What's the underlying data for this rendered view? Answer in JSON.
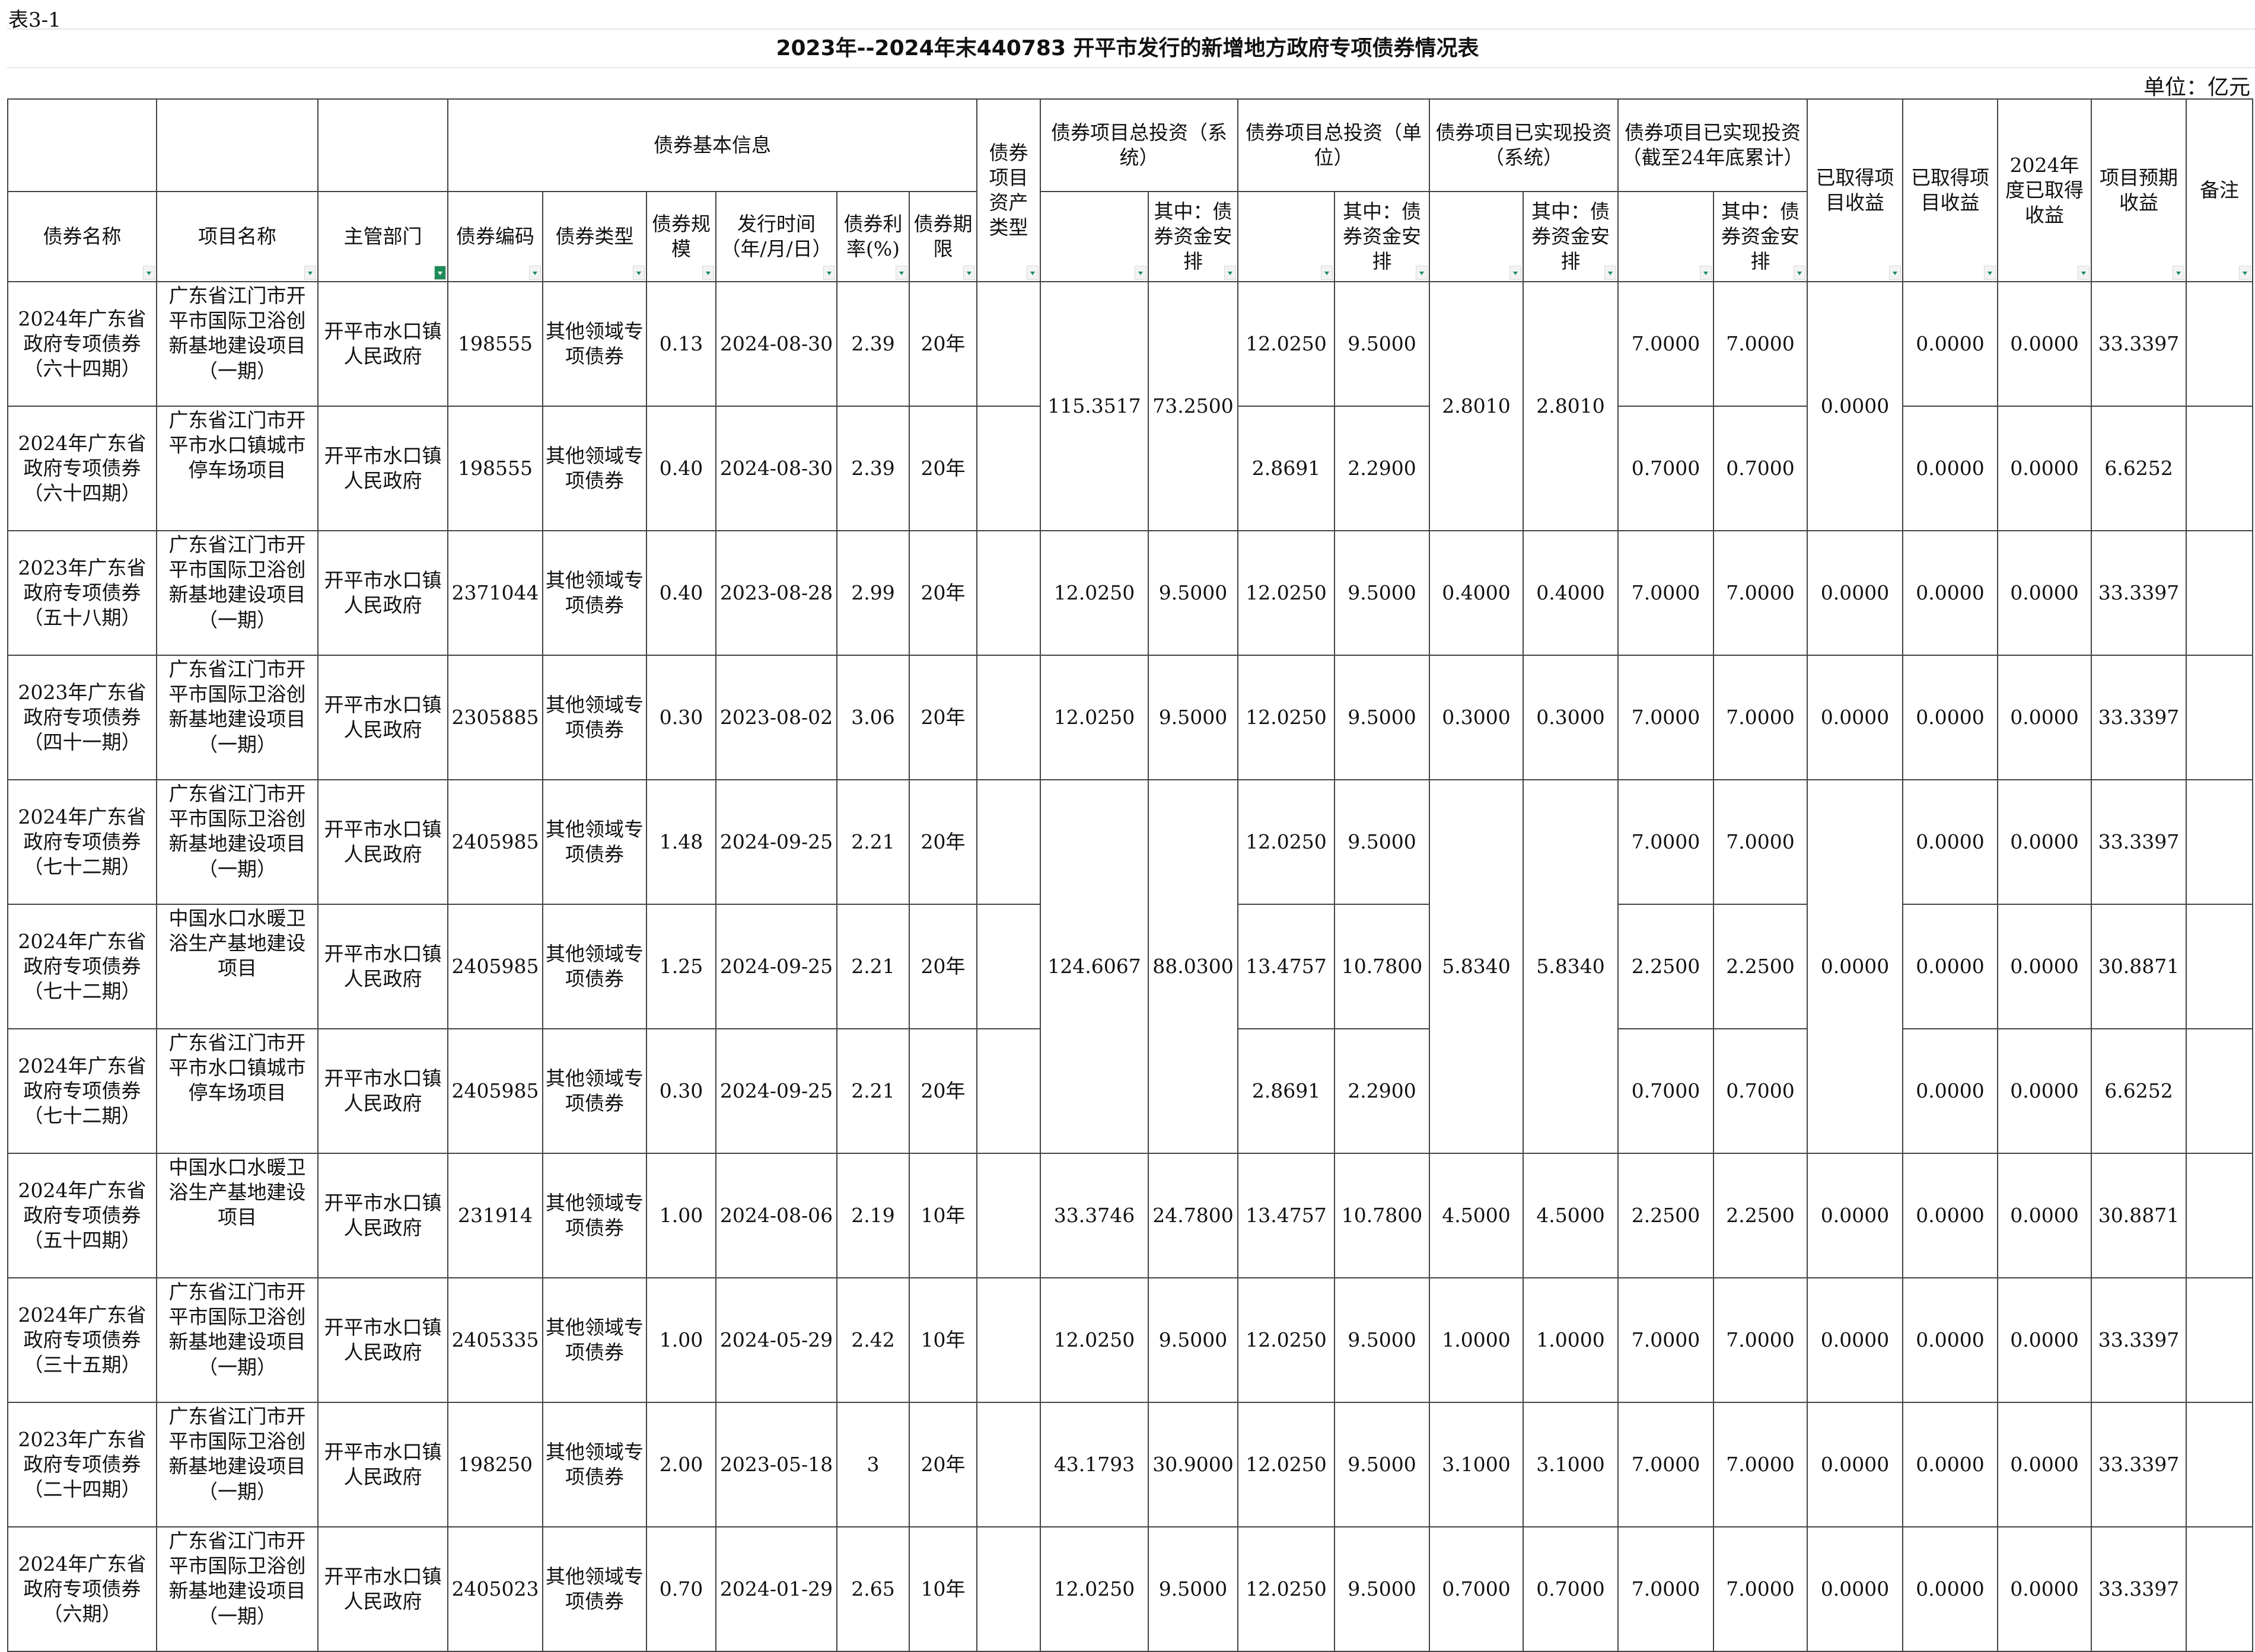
{
  "sheet_label": "表3-1",
  "title": "2023年--2024年末440783 开平市发行的新增地方政府专项债券情况表",
  "unit": "单位：亿元",
  "header": {
    "basic_info": "债券基本信息",
    "asset_type": "债券项目资产类型",
    "total_invest_system": "债券项目总投资（系统）",
    "total_invest_unit": "债券项目总投资（单位）",
    "realized_system": "债券项目已实现投资（系统）",
    "realized_cumulative": "债券项目已实现投资（截至24年底累计）",
    "income_obtained_1": "已取得项目收益",
    "income_obtained_2": "已取得项目收益",
    "income_2024": "2024年度已取得收益",
    "expected_income": "项目预期收益",
    "remarks": "备注",
    "of_which": "其中：债券资金安排",
    "columns": [
      "债券名称",
      "项目名称",
      "主管部门",
      "债券编码",
      "债券类型",
      "债券规模",
      "发行时间（年/月/日）",
      "债券利率(%)",
      "债券期限"
    ]
  },
  "rows": [
    [
      "2024年广东省政府专项债券（六十四期）",
      "广东省江门市开平市国际卫浴创新基地建设项目（一期）",
      "开平市水口镇人民政府",
      "198555",
      "其他领域专项债券",
      "0.13",
      "2024-08-30",
      "2.39",
      "20年",
      "",
      "115.3517",
      "73.2500",
      "12.0250",
      "9.5000",
      "2.8010",
      "2.8010",
      "7.0000",
      "7.0000",
      "0.0000",
      "0.0000",
      "0.0000",
      "33.3397",
      ""
    ],
    [
      "2024年广东省政府专项债券（六十四期）",
      "广东省江门市开平市水口镇城市停车场项目",
      "开平市水口镇人民政府",
      "198555",
      "其他领域专项债券",
      "0.40",
      "2024-08-30",
      "2.39",
      "20年",
      "",
      "",
      "",
      "2.8691",
      "2.2900",
      "",
      "",
      "0.7000",
      "0.7000",
      "",
      "0.0000",
      "0.0000",
      "6.6252",
      ""
    ],
    [
      "2023年广东省政府专项债券（五十八期）",
      "广东省江门市开平市国际卫浴创新基地建设项目（一期）",
      "开平市水口镇人民政府",
      "2371044",
      "其他领域专项债券",
      "0.40",
      "2023-08-28",
      "2.99",
      "20年",
      "",
      "12.0250",
      "9.5000",
      "12.0250",
      "9.5000",
      "0.4000",
      "0.4000",
      "7.0000",
      "7.0000",
      "0.0000",
      "0.0000",
      "0.0000",
      "33.3397",
      ""
    ],
    [
      "2023年广东省政府专项债券（四十一期）",
      "广东省江门市开平市国际卫浴创新基地建设项目（一期）",
      "开平市水口镇人民政府",
      "2305885",
      "其他领域专项债券",
      "0.30",
      "2023-08-02",
      "3.06",
      "20年",
      "",
      "12.0250",
      "9.5000",
      "12.0250",
      "9.5000",
      "0.3000",
      "0.3000",
      "7.0000",
      "7.0000",
      "0.0000",
      "0.0000",
      "0.0000",
      "33.3397",
      ""
    ],
    [
      "2024年广东省政府专项债券（七十二期）",
      "广东省江门市开平市国际卫浴创新基地建设项目（一期）",
      "开平市水口镇人民政府",
      "2405985",
      "其他领域专项债券",
      "1.48",
      "2024-09-25",
      "2.21",
      "20年",
      "",
      "124.6067",
      "88.0300",
      "12.0250",
      "9.5000",
      "5.8340",
      "5.8340",
      "7.0000",
      "7.0000",
      "0.0000",
      "0.0000",
      "0.0000",
      "33.3397",
      ""
    ],
    [
      "2024年广东省政府专项债券（七十二期）",
      "中国水口水暖卫浴生产基地建设项目",
      "开平市水口镇人民政府",
      "2405985",
      "其他领域专项债券",
      "1.25",
      "2024-09-25",
      "2.21",
      "20年",
      "",
      "",
      "",
      "13.4757",
      "10.7800",
      "",
      "",
      "2.2500",
      "2.2500",
      "",
      "0.0000",
      "0.0000",
      "30.8871",
      ""
    ],
    [
      "2024年广东省政府专项债券（七十二期）",
      "广东省江门市开平市水口镇城市停车场项目",
      "开平市水口镇人民政府",
      "2405985",
      "其他领域专项债券",
      "0.30",
      "2024-09-25",
      "2.21",
      "20年",
      "",
      "",
      "",
      "2.8691",
      "2.2900",
      "",
      "",
      "0.7000",
      "0.7000",
      "",
      "0.0000",
      "0.0000",
      "6.6252",
      ""
    ],
    [
      "2024年广东省政府专项债券（五十四期）",
      "中国水口水暖卫浴生产基地建设项目",
      "开平市水口镇人民政府",
      "231914",
      "其他领域专项债券",
      "1.00",
      "2024-08-06",
      "2.19",
      "10年",
      "",
      "33.3746",
      "24.7800",
      "13.4757",
      "10.7800",
      "4.5000",
      "4.5000",
      "2.2500",
      "2.2500",
      "0.0000",
      "0.0000",
      "0.0000",
      "30.8871",
      ""
    ],
    [
      "2024年广东省政府专项债券（三十五期）",
      "广东省江门市开平市国际卫浴创新基地建设项目（一期）",
      "开平市水口镇人民政府",
      "2405335",
      "其他领域专项债券",
      "1.00",
      "2024-05-29",
      "2.42",
      "10年",
      "",
      "12.0250",
      "9.5000",
      "12.0250",
      "9.5000",
      "1.0000",
      "1.0000",
      "7.0000",
      "7.0000",
      "0.0000",
      "0.0000",
      "0.0000",
      "33.3397",
      ""
    ],
    [
      "2023年广东省政府专项债券（二十四期）",
      "广东省江门市开平市国际卫浴创新基地建设项目（一期）",
      "开平市水口镇人民政府",
      "198250",
      "其他领域专项债券",
      "2.00",
      "2023-05-18",
      "3",
      "20年",
      "",
      "43.1793",
      "30.9000",
      "12.0250",
      "9.5000",
      "3.1000",
      "3.1000",
      "7.0000",
      "7.0000",
      "0.0000",
      "0.0000",
      "0.0000",
      "33.3397",
      ""
    ],
    [
      "2024年广东省政府专项债券（六期）",
      "广东省江门市开平市国际卫浴创新基地建设项目（一期）",
      "开平市水口镇人民政府",
      "2405023",
      "其他领域专项债券",
      "0.70",
      "2024-01-29",
      "2.65",
      "10年",
      "",
      "12.0250",
      "9.5000",
      "12.0250",
      "9.5000",
      "0.7000",
      "0.7000",
      "7.0000",
      "7.0000",
      "0.0000",
      "0.0000",
      "0.0000",
      "33.3397",
      ""
    ]
  ],
  "colors": {
    "grid": "#444444",
    "filter_accent": "#1e8c5a"
  }
}
